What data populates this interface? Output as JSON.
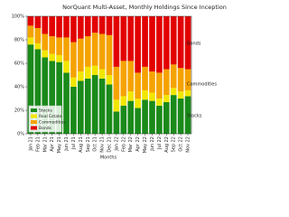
{
  "chart_data": {
    "type": "stacked_bar_percent",
    "title": "NorQuant Multi-Asset, Monthly Holdings Since Inception",
    "x_label": "Months",
    "categories": [
      "Jan 21",
      "Feb 21",
      "Mar 21",
      "Apr 21",
      "May 21",
      "Jun 21",
      "Jul 21",
      "Aug 21",
      "Sep 21",
      "Oct 21",
      "Nov 21",
      "Dec 21",
      "Jan 22",
      "Feb 22",
      "Mar 22",
      "Apr 22",
      "May 22",
      "Jun 22",
      "Jul 22",
      "Aug 22",
      "Sep 22",
      "Oct 22",
      "Nov 22"
    ],
    "series": [
      {
        "name": "Stocks",
        "color": "#1a8a1a",
        "values": [
          76,
          72,
          65,
          62,
          61,
          52,
          40,
          45,
          47,
          50,
          47,
          42,
          19,
          24,
          28,
          22,
          29,
          28,
          24,
          27,
          33,
          30,
          32
        ]
      },
      {
        "name": "Real Estate",
        "color": "#f2e600",
        "values": [
          6,
          5,
          6,
          6,
          6,
          10,
          8,
          8,
          10,
          8,
          8,
          8,
          10,
          8,
          8,
          8,
          8,
          7,
          6,
          6,
          6,
          6,
          5
        ]
      },
      {
        "name": "Commodities",
        "color": "#f5a300",
        "values": [
          10,
          13,
          14,
          15,
          15,
          20,
          30,
          28,
          26,
          28,
          30,
          34,
          28,
          30,
          26,
          22,
          20,
          18,
          22,
          22,
          20,
          20,
          18
        ]
      },
      {
        "name": "Bonds",
        "color": "#e20000",
        "values": [
          8,
          10,
          15,
          17,
          18,
          18,
          22,
          19,
          17,
          14,
          15,
          16,
          43,
          38,
          38,
          48,
          43,
          47,
          48,
          45,
          41,
          44,
          45
        ]
      }
    ],
    "ylim": [
      0,
      100
    ],
    "yticks": [
      {
        "value": 0,
        "label": "0%"
      },
      {
        "value": 20,
        "label": "20%"
      },
      {
        "value": 40,
        "label": "40%"
      },
      {
        "value": 60,
        "label": "60%"
      },
      {
        "value": 80,
        "label": "80%"
      },
      {
        "value": 100,
        "label": "100%"
      }
    ],
    "annotations": [
      "Bonds",
      "Commodities",
      "Stocks"
    ],
    "legend": "lower left"
  }
}
